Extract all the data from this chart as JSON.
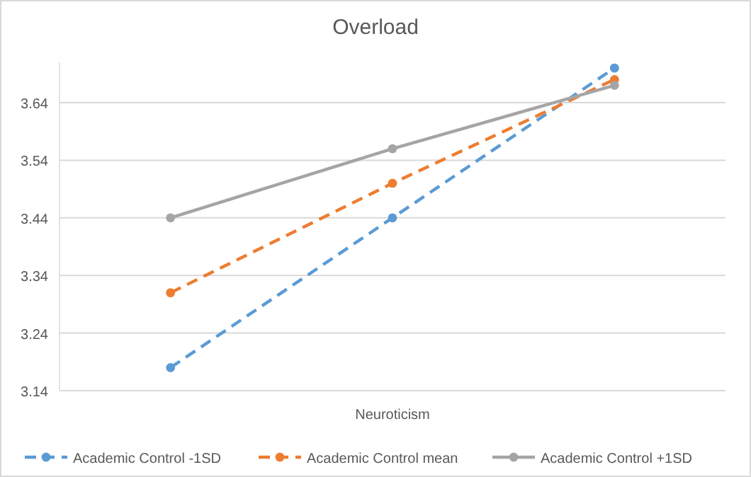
{
  "chart_data": {
    "type": "line",
    "title": "Overload",
    "xlabel": "Neuroticism",
    "categories": [
      null,
      null,
      null
    ],
    "series": [
      {
        "name": "Academic Control -1SD",
        "color": "#5b9bd5",
        "values": [
          3.18,
          3.44,
          3.7
        ],
        "line_style": "dashed"
      },
      {
        "name": "Academic Control mean",
        "color": "#ed7d31",
        "values": [
          3.31,
          3.5,
          3.68
        ],
        "line_style": "dashed"
      },
      {
        "name": "Academic Control +1SD",
        "color": "#a5a5a5",
        "values": [
          3.44,
          3.56,
          3.67
        ],
        "line_style": "solid"
      }
    ],
    "ylim": [
      3.14,
      3.71
    ],
    "yticks": [
      3.14,
      3.24,
      3.34,
      3.44,
      3.54,
      3.64
    ],
    "grid": "y",
    "legend": "bottom",
    "marker": "circle",
    "tick_labels": "y"
  }
}
